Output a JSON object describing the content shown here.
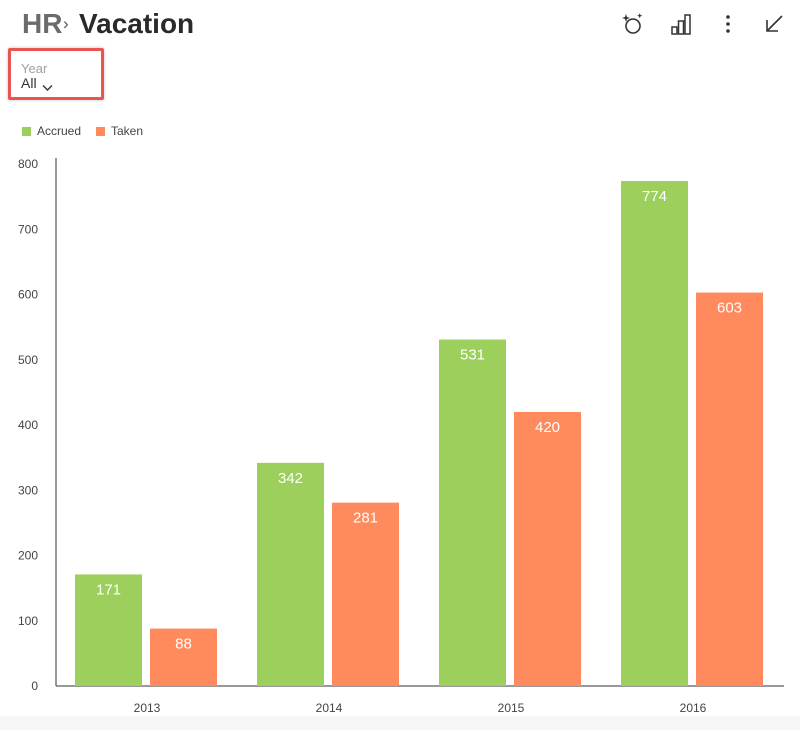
{
  "header": {
    "breadcrumb_parent": "HR",
    "separator": "›",
    "title": "Vacation"
  },
  "toolbar": {
    "icons": [
      "sparkle-refresh-icon",
      "bar-chart-icon",
      "more-vertical-icon",
      "collapse-arrow-icon"
    ]
  },
  "filter": {
    "label": "Year",
    "value": "All",
    "highlight_color": "#e8554e"
  },
  "colors": {
    "accrued": "#9ccf5c",
    "taken": "#ff8a5e"
  },
  "chart_data": {
    "type": "bar",
    "categories": [
      "2013",
      "2014",
      "2015",
      "2016"
    ],
    "series": [
      {
        "name": "Accrued",
        "values": [
          171,
          342,
          531,
          774
        ]
      },
      {
        "name": "Taken",
        "values": [
          88,
          281,
          420,
          603
        ]
      }
    ],
    "ylim": [
      0,
      800
    ],
    "yticks": [
      "0",
      "100",
      "200",
      "300",
      "400",
      "500",
      "600",
      "700",
      "800"
    ],
    "legend_position": "top-left",
    "grid": false,
    "data_labels": true
  }
}
